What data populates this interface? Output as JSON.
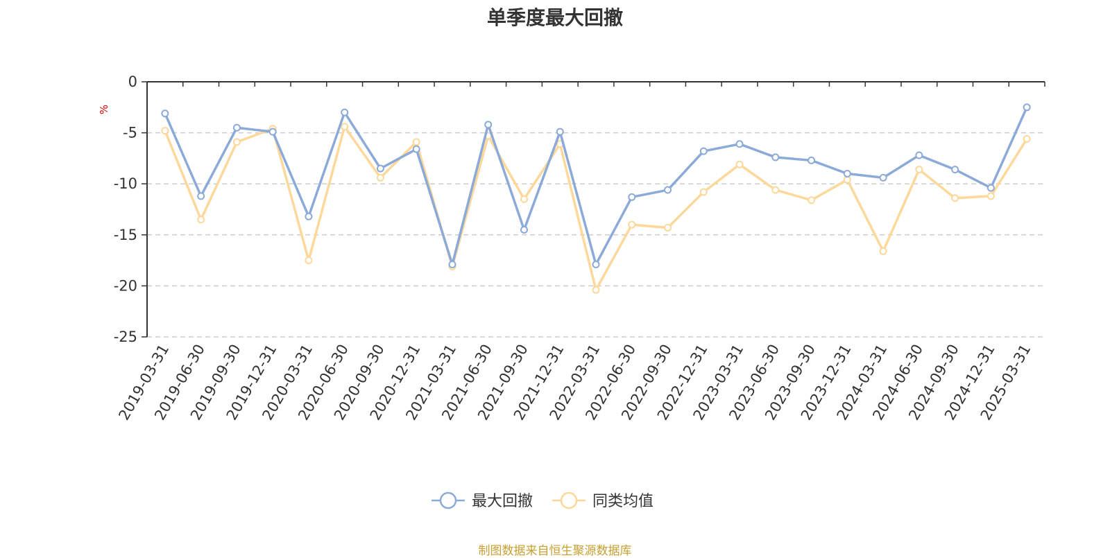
{
  "chart_data": {
    "type": "line",
    "title": "单季度最大回撤",
    "ylabel": "%",
    "ylim": [
      -25,
      0
    ],
    "yticks": [
      "0",
      "-5",
      "-10",
      "-15",
      "-20",
      "-25"
    ],
    "grid": true,
    "legend_position": "bottom-center",
    "categories": [
      "2019-03-31",
      "2019-06-30",
      "2019-09-30",
      "2019-12-31",
      "2020-03-31",
      "2020-06-30",
      "2020-09-30",
      "2020-12-31",
      "2021-03-31",
      "2021-06-30",
      "2021-09-30",
      "2021-12-31",
      "2022-03-31",
      "2022-06-30",
      "2022-09-30",
      "2022-12-31",
      "2023-03-31",
      "2023-06-30",
      "2023-09-30",
      "2023-12-31",
      "2024-03-31",
      "2024-06-30",
      "2024-09-30",
      "2024-12-31",
      "2025-03-31"
    ],
    "series": [
      {
        "name": "最大回撤",
        "color": "#8caad8",
        "values": [
          -3.1,
          -11.2,
          -4.5,
          -4.9,
          -13.2,
          -3.0,
          -8.5,
          -6.6,
          -17.9,
          -4.2,
          -14.5,
          -4.9,
          -17.9,
          -11.3,
          -10.6,
          -6.8,
          -6.1,
          -7.4,
          -7.7,
          -9.0,
          -9.4,
          -7.2,
          -8.6,
          -10.4,
          -2.5
        ]
      },
      {
        "name": "同类均值",
        "color": "#fcd89a",
        "values": [
          -4.8,
          -13.5,
          -5.9,
          -4.6,
          -17.5,
          -4.4,
          -9.4,
          -5.9,
          -18.1,
          -5.3,
          -11.5,
          -6.1,
          -20.4,
          -14.0,
          -14.3,
          -10.8,
          -8.1,
          -10.6,
          -11.6,
          -9.6,
          -16.6,
          -8.6,
          -11.4,
          -11.2,
          -5.6
        ]
      }
    ]
  },
  "footer": {
    "source": "制图数据来自恒生聚源数据库"
  }
}
